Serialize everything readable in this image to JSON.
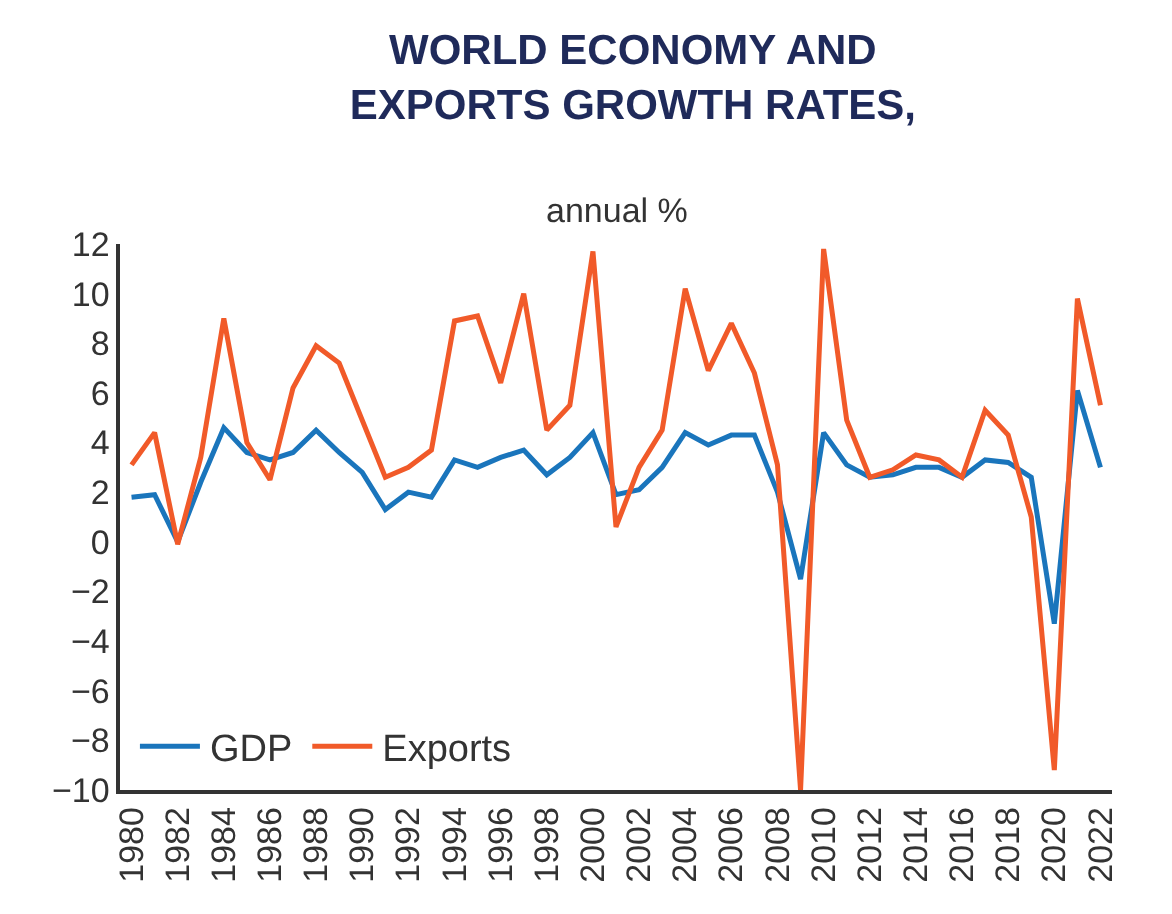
{
  "chart_data": {
    "type": "line",
    "title": "WORLD ECONOMY AND\nEXPORTS GROWTH RATES,",
    "subtitle": "annual %",
    "x": [
      1980,
      1981,
      1982,
      1983,
      1984,
      1985,
      1986,
      1987,
      1988,
      1989,
      1990,
      1991,
      1992,
      1993,
      1994,
      1995,
      1996,
      1997,
      1998,
      1999,
      2000,
      2001,
      2002,
      2003,
      2004,
      2005,
      2006,
      2007,
      2008,
      2009,
      2010,
      2011,
      2012,
      2013,
      2014,
      2015,
      2016,
      2017,
      2018,
      2019,
      2020,
      2021,
      2022
    ],
    "series": [
      {
        "name": "GDP",
        "color": "#1a75bc",
        "values": [
          1.8,
          1.9,
          0.0,
          2.4,
          4.6,
          3.6,
          3.3,
          3.6,
          4.5,
          3.6,
          2.8,
          1.3,
          2.0,
          1.8,
          3.3,
          3.0,
          3.4,
          3.7,
          2.7,
          3.4,
          4.4,
          1.9,
          2.1,
          3.0,
          4.4,
          3.9,
          4.3,
          4.3,
          2.0,
          -1.5,
          4.4,
          3.1,
          2.6,
          2.7,
          3.0,
          3.0,
          2.6,
          3.3,
          3.2,
          2.6,
          -3.3,
          6.1,
          3.0
        ]
      },
      {
        "name": "Exports",
        "color": "#f15a29",
        "values": [
          3.1,
          4.4,
          -0.1,
          3.4,
          9.0,
          4.0,
          2.5,
          6.2,
          7.9,
          7.2,
          4.9,
          2.6,
          3.0,
          3.7,
          8.9,
          9.1,
          6.4,
          10.0,
          4.5,
          5.5,
          11.7,
          0.6,
          3.0,
          4.5,
          10.2,
          6.9,
          8.8,
          6.8,
          3.1,
          -10.0,
          11.8,
          4.9,
          2.6,
          2.9,
          3.5,
          3.3,
          2.6,
          5.3,
          4.3,
          1.0,
          -9.2,
          9.8,
          5.5
        ]
      }
    ],
    "xlim": [
      1979.5,
      2022.5
    ],
    "xticks": [
      1980,
      1982,
      1984,
      1986,
      1988,
      1990,
      1992,
      1994,
      1996,
      1998,
      2000,
      2002,
      2004,
      2006,
      2008,
      2010,
      2012,
      2014,
      2016,
      2018,
      2020,
      2022
    ],
    "ylim": [
      -10,
      12
    ],
    "yticks": [
      -10,
      -8,
      -6,
      -4,
      -2,
      0,
      2,
      4,
      6,
      8,
      10,
      12
    ],
    "grid": false,
    "legend": "bottom left",
    "marker": "none",
    "line_style": "solid"
  }
}
